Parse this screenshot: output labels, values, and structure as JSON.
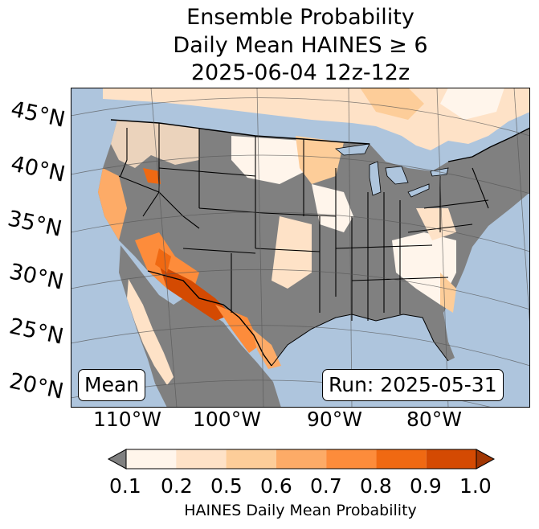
{
  "title": {
    "line1": "Ensemble Probability",
    "line2": "Daily Mean HAINES ≥ 6",
    "line3": "2025-06-04 12z-12z"
  },
  "axes": {
    "lat_labels": [
      "45°N",
      "40°N",
      "35°N",
      "30°N",
      "25°N",
      "20°N"
    ],
    "lon_labels": [
      "110°W",
      "100°W",
      "90°W",
      "80°W"
    ]
  },
  "boxes": {
    "stat": "Mean",
    "run": "Run: 2025-05-31"
  },
  "colorbar": {
    "tick_labels": [
      "0.1",
      "0.2",
      "0.5",
      "0.6",
      "0.7",
      "0.8",
      "0.9",
      "1.0"
    ],
    "bin_colors": [
      "#fff5eb",
      "#fee2c7",
      "#fdcd99",
      "#fdab67",
      "#fd8c3b",
      "#f06912",
      "#d44a02"
    ],
    "under_color": "#808080",
    "over_color": "#a13603",
    "caption": "HAINES Daily Mean Probability"
  },
  "map_colors": {
    "ocean": "#aec5dd",
    "below_threshold": "#808080"
  }
}
